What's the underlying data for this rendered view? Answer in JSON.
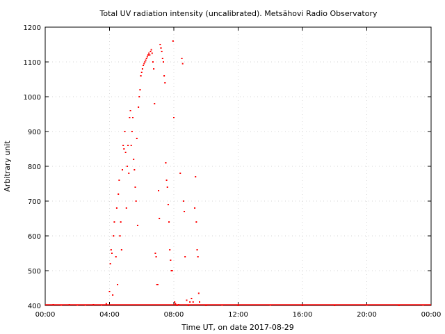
{
  "chart_data": {
    "type": "scatter",
    "title": "Total UV radiation intensity (uncalibrated). Metsähovi Radio Observatory",
    "xlabel": "Time UT, on date 2017-08-29",
    "ylabel": "Arbitrary unit",
    "xlim_hours": [
      0,
      24
    ],
    "ylim": [
      400,
      1200
    ],
    "x_ticks": [
      {
        "value": 0,
        "label": "00:00"
      },
      {
        "value": 4,
        "label": "04:00"
      },
      {
        "value": 8,
        "label": "08:00"
      },
      {
        "value": 12,
        "label": "12:00"
      },
      {
        "value": 16,
        "label": "16:00"
      },
      {
        "value": 20,
        "label": "20:00"
      },
      {
        "value": 24,
        "label": "00:00"
      }
    ],
    "y_ticks": [
      400,
      500,
      600,
      700,
      800,
      900,
      1000,
      1100,
      1200
    ],
    "grid": true,
    "legend": "none",
    "marker_color": "#ff0000",
    "series": [
      {
        "x_hours": [
          0.5,
          1.0,
          1.5,
          2.0,
          2.5,
          3.0,
          3.5,
          3.8,
          4.0,
          4.05,
          4.1,
          4.15,
          4.2,
          4.25,
          4.3,
          4.4,
          4.45,
          4.5,
          4.55,
          4.6,
          4.65,
          4.7,
          4.75,
          4.8,
          4.85,
          4.9,
          4.95,
          5.0,
          5.05,
          5.1,
          5.15,
          5.2,
          5.25,
          5.3,
          5.35,
          5.4,
          5.45,
          5.5,
          5.55,
          5.6,
          5.65,
          5.7,
          5.75,
          5.8,
          5.85,
          5.9,
          5.95,
          6.0,
          6.05,
          6.1,
          6.15,
          6.2,
          6.25,
          6.3,
          6.35,
          6.4,
          6.45,
          6.5,
          6.55,
          6.6,
          6.65,
          6.7,
          6.75,
          6.8,
          6.85,
          6.9,
          6.95,
          7.0,
          7.05,
          7.1,
          7.15,
          7.2,
          7.25,
          7.3,
          7.35,
          7.4,
          7.45,
          7.5,
          7.55,
          7.6,
          7.65,
          7.7,
          7.75,
          7.8,
          7.85,
          7.9,
          7.95,
          8.0,
          8.05,
          8.1,
          8.2,
          8.3,
          8.4,
          8.5,
          8.55,
          8.6,
          8.65,
          8.7,
          8.8,
          8.9,
          9.0,
          9.1,
          9.2,
          9.3,
          9.35,
          9.4,
          9.45,
          9.5,
          9.55,
          9.6,
          10.0,
          11.0,
          12.0,
          14.0,
          16.0,
          18.0,
          20.0,
          22.0,
          23.5
        ],
        "values": [
          402,
          401,
          402,
          401,
          401,
          402,
          401,
          405,
          440,
          520,
          560,
          550,
          430,
          600,
          640,
          540,
          680,
          460,
          720,
          760,
          600,
          640,
          560,
          790,
          860,
          850,
          900,
          840,
          680,
          800,
          860,
          780,
          940,
          960,
          860,
          900,
          940,
          820,
          790,
          740,
          700,
          880,
          630,
          970,
          1000,
          1020,
          1060,
          1070,
          1080,
          1090,
          1095,
          1100,
          1105,
          1110,
          1115,
          1120,
          1125,
          1120,
          1130,
          1135,
          1125,
          1100,
          1080,
          980,
          550,
          540,
          460,
          460,
          730,
          650,
          1150,
          1140,
          1130,
          1110,
          1100,
          1060,
          1040,
          810,
          760,
          740,
          690,
          640,
          560,
          530,
          500,
          500,
          1160,
          940,
          410,
          405,
          400,
          402,
          780,
          1110,
          1095,
          700,
          670,
          540,
          415,
          400,
          410,
          420,
          410,
          680,
          770,
          640,
          560,
          540,
          435,
          410,
          400,
          401,
          400,
          401,
          400,
          400,
          401,
          400,
          401
        ]
      }
    ]
  }
}
